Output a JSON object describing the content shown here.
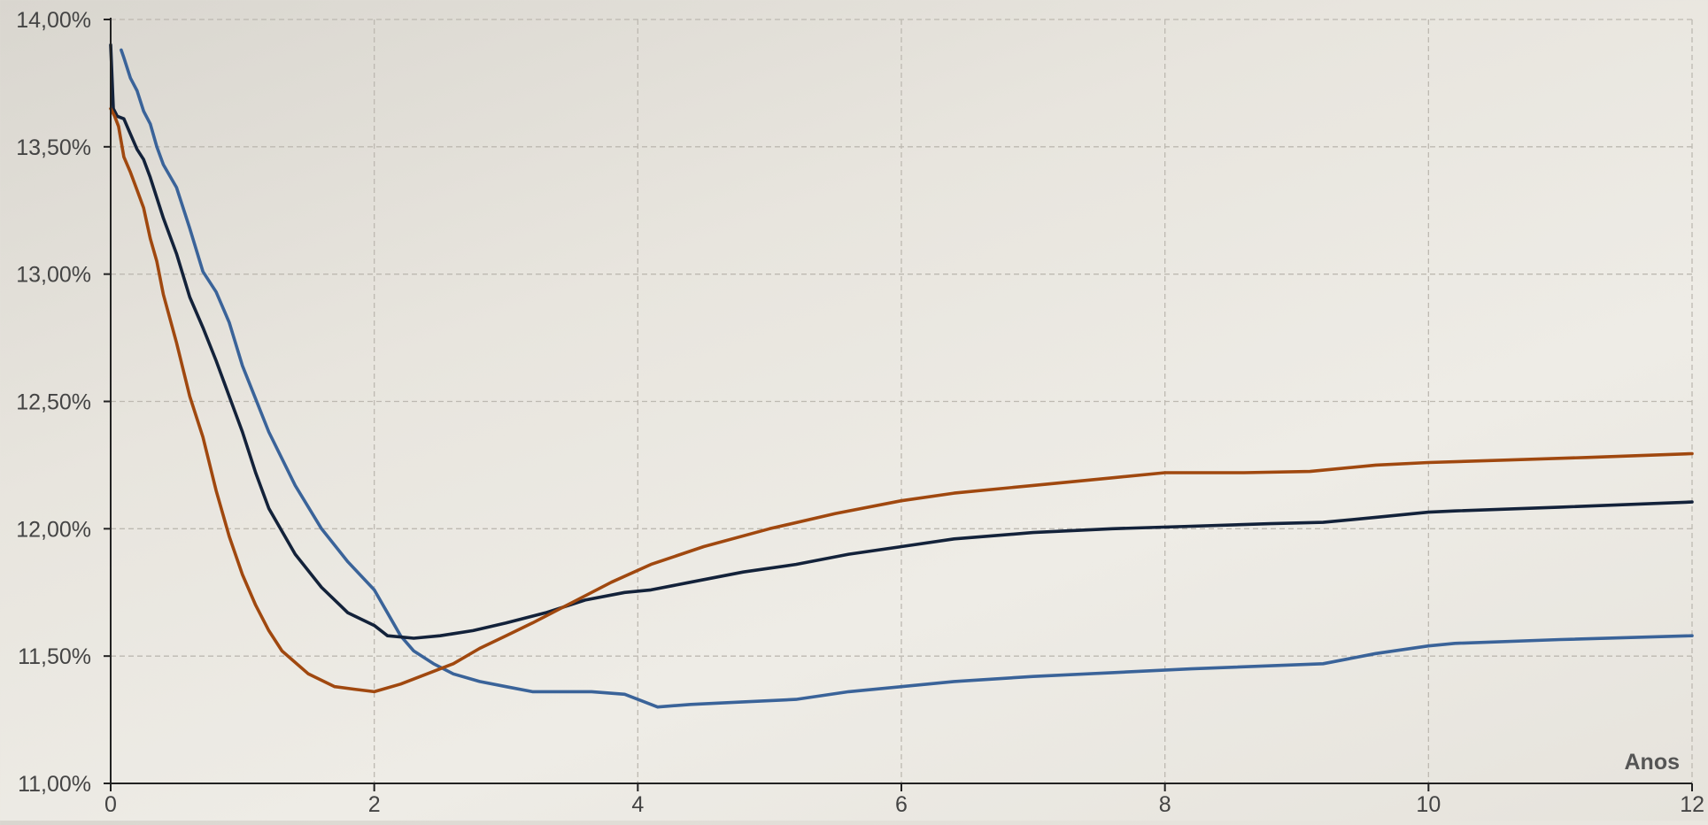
{
  "chart_data": {
    "type": "line",
    "xlabel": "Anos",
    "ylabel": "",
    "xlim": [
      0,
      12
    ],
    "ylim": [
      11.0,
      14.0
    ],
    "grid": true,
    "x_ticks": [
      0,
      2,
      4,
      6,
      8,
      10,
      12
    ],
    "x_tick_labels": [
      "0",
      "2",
      "4",
      "6",
      "8",
      "10",
      "12"
    ],
    "y_ticks": [
      11.0,
      11.5,
      12.0,
      12.5,
      13.0,
      13.5,
      14.0
    ],
    "y_tick_labels": [
      "11,00%",
      "11,50%",
      "12,00%",
      "12,50%",
      "13,00%",
      "13,50%",
      "14,00%"
    ],
    "series": [
      {
        "color": "#3a6399",
        "points": [
          [
            0.08,
            13.88
          ],
          [
            0.1,
            13.85
          ],
          [
            0.15,
            13.77
          ],
          [
            0.2,
            13.72
          ],
          [
            0.25,
            13.64
          ],
          [
            0.3,
            13.59
          ],
          [
            0.35,
            13.5
          ],
          [
            0.4,
            13.43
          ],
          [
            0.5,
            13.34
          ],
          [
            0.6,
            13.18
          ],
          [
            0.7,
            13.01
          ],
          [
            0.8,
            12.93
          ],
          [
            0.9,
            12.81
          ],
          [
            1.0,
            12.64
          ],
          [
            1.1,
            12.51
          ],
          [
            1.2,
            12.38
          ],
          [
            1.4,
            12.17
          ],
          [
            1.6,
            12.0
          ],
          [
            1.8,
            11.87
          ],
          [
            2.0,
            11.76
          ],
          [
            2.1,
            11.67
          ],
          [
            2.2,
            11.58
          ],
          [
            2.3,
            11.52
          ],
          [
            2.45,
            11.47
          ],
          [
            2.6,
            11.43
          ],
          [
            2.8,
            11.4
          ],
          [
            3.0,
            11.38
          ],
          [
            3.2,
            11.36
          ],
          [
            3.45,
            11.36
          ],
          [
            3.65,
            11.36
          ],
          [
            3.9,
            11.35
          ],
          [
            4.15,
            11.3
          ],
          [
            4.4,
            11.31
          ],
          [
            4.8,
            11.32
          ],
          [
            5.2,
            11.33
          ],
          [
            5.6,
            11.36
          ],
          [
            6.0,
            11.38
          ],
          [
            6.4,
            11.4
          ],
          [
            7.0,
            11.42
          ],
          [
            7.6,
            11.435
          ],
          [
            8.2,
            11.45
          ],
          [
            9.2,
            11.47
          ],
          [
            9.6,
            11.51
          ],
          [
            10.0,
            11.54
          ],
          [
            10.2,
            11.55
          ],
          [
            11.0,
            11.565
          ],
          [
            12.0,
            11.58
          ]
        ]
      },
      {
        "color": "#13223a",
        "points": [
          [
            0.0,
            13.9
          ],
          [
            0.02,
            13.65
          ],
          [
            0.05,
            13.62
          ],
          [
            0.1,
            13.61
          ],
          [
            0.15,
            13.55
          ],
          [
            0.2,
            13.49
          ],
          [
            0.25,
            13.45
          ],
          [
            0.3,
            13.38
          ],
          [
            0.35,
            13.3
          ],
          [
            0.4,
            13.22
          ],
          [
            0.5,
            13.08
          ],
          [
            0.6,
            12.91
          ],
          [
            0.7,
            12.79
          ],
          [
            0.8,
            12.66
          ],
          [
            0.9,
            12.52
          ],
          [
            1.0,
            12.38
          ],
          [
            1.1,
            12.22
          ],
          [
            1.2,
            12.08
          ],
          [
            1.4,
            11.9
          ],
          [
            1.6,
            11.77
          ],
          [
            1.8,
            11.67
          ],
          [
            2.0,
            11.62
          ],
          [
            2.1,
            11.58
          ],
          [
            2.3,
            11.57
          ],
          [
            2.5,
            11.58
          ],
          [
            2.75,
            11.6
          ],
          [
            3.0,
            11.63
          ],
          [
            3.3,
            11.67
          ],
          [
            3.6,
            11.72
          ],
          [
            3.9,
            11.75
          ],
          [
            4.1,
            11.76
          ],
          [
            4.4,
            11.79
          ],
          [
            4.8,
            11.83
          ],
          [
            5.2,
            11.86
          ],
          [
            5.6,
            11.9
          ],
          [
            6.0,
            11.93
          ],
          [
            6.4,
            11.96
          ],
          [
            7.0,
            11.985
          ],
          [
            7.6,
            12.0
          ],
          [
            8.2,
            12.01
          ],
          [
            8.8,
            12.02
          ],
          [
            9.2,
            12.025
          ],
          [
            9.6,
            12.045
          ],
          [
            10.0,
            12.065
          ],
          [
            10.2,
            12.07
          ],
          [
            11.0,
            12.085
          ],
          [
            12.0,
            12.105
          ]
        ]
      },
      {
        "color": "#a0480f",
        "points": [
          [
            0.0,
            13.65
          ],
          [
            0.03,
            13.62
          ],
          [
            0.06,
            13.58
          ],
          [
            0.1,
            13.46
          ],
          [
            0.15,
            13.4
          ],
          [
            0.2,
            13.33
          ],
          [
            0.25,
            13.26
          ],
          [
            0.3,
            13.14
          ],
          [
            0.35,
            13.05
          ],
          [
            0.4,
            12.92
          ],
          [
            0.5,
            12.73
          ],
          [
            0.6,
            12.52
          ],
          [
            0.7,
            12.36
          ],
          [
            0.8,
            12.15
          ],
          [
            0.9,
            11.97
          ],
          [
            1.0,
            11.82
          ],
          [
            1.1,
            11.7
          ],
          [
            1.2,
            11.6
          ],
          [
            1.3,
            11.52
          ],
          [
            1.5,
            11.43
          ],
          [
            1.7,
            11.38
          ],
          [
            1.85,
            11.37
          ],
          [
            2.0,
            11.36
          ],
          [
            2.2,
            11.39
          ],
          [
            2.4,
            11.43
          ],
          [
            2.6,
            11.47
          ],
          [
            2.8,
            11.53
          ],
          [
            3.0,
            11.58
          ],
          [
            3.2,
            11.63
          ],
          [
            3.5,
            11.71
          ],
          [
            3.8,
            11.79
          ],
          [
            4.1,
            11.86
          ],
          [
            4.5,
            11.93
          ],
          [
            5.0,
            12.0
          ],
          [
            5.5,
            12.06
          ],
          [
            6.0,
            12.11
          ],
          [
            6.4,
            12.14
          ],
          [
            7.0,
            12.17
          ],
          [
            7.6,
            12.2
          ],
          [
            8.0,
            12.22
          ],
          [
            8.6,
            12.22
          ],
          [
            9.1,
            12.225
          ],
          [
            9.6,
            12.25
          ],
          [
            10.0,
            12.26
          ],
          [
            10.6,
            12.27
          ],
          [
            11.2,
            12.28
          ],
          [
            12.0,
            12.295
          ]
        ]
      }
    ]
  }
}
